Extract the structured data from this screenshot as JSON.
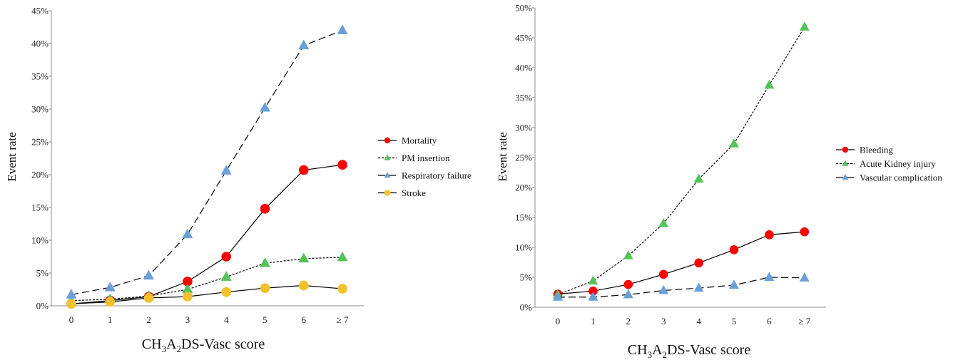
{
  "colors": {
    "red": "#ff0000",
    "green": "#55c35a",
    "blue": "#6b9fd8",
    "yellow": "#f2c12e",
    "axis": "#8c8c8c",
    "line": "#000000"
  },
  "chart_data": [
    {
      "type": "line",
      "categories": [
        "0",
        "1",
        "2",
        "3",
        "4",
        "5",
        "6",
        "≥ 7"
      ],
      "y_ticks": [
        "0%",
        "5%",
        "10%",
        "15%",
        "20%",
        "25%",
        "30%",
        "35%",
        "40%",
        "45%"
      ],
      "ylim": [
        0,
        45
      ],
      "ylabel": "Event rate",
      "xlabel": {
        "base": "CH",
        "sub1": "3",
        "mid": "A",
        "sub2": "2",
        "tail": "DS-Vasc score"
      },
      "legend_position": "right",
      "grid": false,
      "series": [
        {
          "name": "Mortality",
          "marker": "circle",
          "color": "red",
          "dash": "solid",
          "values": [
            0.3,
            0.8,
            1.4,
            3.7,
            7.5,
            14.8,
            20.7,
            21.5
          ]
        },
        {
          "name": "PM insertion",
          "marker": "triangle",
          "color": "green",
          "dash": "dotted",
          "values": [
            0.8,
            1.0,
            1.5,
            2.5,
            4.4,
            6.5,
            7.2,
            7.4
          ]
        },
        {
          "name": "Respiratory failure",
          "marker": "triangle",
          "color": "blue",
          "dash": "dashed",
          "values": [
            1.7,
            2.8,
            4.6,
            10.9,
            20.6,
            30.2,
            39.7,
            42.0
          ]
        },
        {
          "name": "Stroke",
          "marker": "circle",
          "color": "yellow",
          "dash": "solid",
          "values": [
            0.3,
            0.6,
            1.2,
            1.4,
            2.1,
            2.7,
            3.1,
            2.6
          ]
        }
      ]
    },
    {
      "type": "line",
      "categories": [
        "0",
        "1",
        "2",
        "3",
        "4",
        "5",
        "6",
        "≥ 7"
      ],
      "y_ticks": [
        "0%",
        "5%",
        "10%",
        "15%",
        "20%",
        "25%",
        "30%",
        "35%",
        "40%",
        "45%",
        "50%"
      ],
      "ylim": [
        0,
        50
      ],
      "ylabel": "Event rate",
      "xlabel": {
        "base": "CH",
        "sub1": "3",
        "mid": "A",
        "sub2": "2",
        "tail": "DS-Vasc score"
      },
      "legend_position": "right",
      "grid": false,
      "series": [
        {
          "name": "Bleeding",
          "marker": "circle",
          "color": "red",
          "dash": "solid",
          "values": [
            2.2,
            2.7,
            3.8,
            5.5,
            7.4,
            9.6,
            12.1,
            12.6
          ]
        },
        {
          "name": "Acute Kidney injury",
          "marker": "triangle",
          "color": "green",
          "dash": "dotted",
          "values": [
            2.1,
            4.4,
            8.6,
            14.0,
            21.4,
            27.3,
            37.1,
            46.8
          ]
        },
        {
          "name": "Vascular complication",
          "marker": "triangle",
          "color": "blue",
          "dash": "dashed",
          "values": [
            1.7,
            1.7,
            2.1,
            2.8,
            3.2,
            3.7,
            5.0,
            4.9
          ]
        }
      ]
    }
  ]
}
